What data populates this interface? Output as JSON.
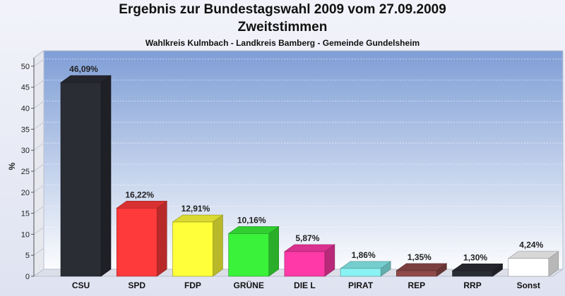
{
  "header": {
    "title": "Ergebnis zur Bundestagswahl 2009 vom 27.09.2009",
    "subtitle": "Zweitstimmen",
    "subtitle2": "Wahlkreis Kulmbach - Landkreis Bamberg - Gemeinde Gundelsheim"
  },
  "chart_data": {
    "type": "bar",
    "title": "Ergebnis zur Bundestagswahl 2009 vom 27.09.2009",
    "subtitle": "Zweitstimmen",
    "categories": [
      "CSU",
      "SPD",
      "FDP",
      "GRÜNE",
      "DIE L",
      "PIRAT",
      "REP",
      "RRP",
      "Sonst"
    ],
    "values": [
      46.09,
      16.22,
      12.91,
      10.16,
      5.87,
      1.86,
      1.35,
      1.3,
      4.24
    ],
    "labels": [
      "46,09%",
      "16,22%",
      "12,91%",
      "10,16%",
      "5,87%",
      "1,86%",
      "1,35%",
      "1,30%",
      "4,24%"
    ],
    "colors": [
      "#2b2d35",
      "#ff3a3a",
      "#ffff3a",
      "#3af23a",
      "#ff3aa8",
      "#8af2f2",
      "#8f4a4a",
      "#2b2d35",
      "#ffffff"
    ],
    "ylabel": "%",
    "xlabel": "",
    "ylim": [
      0,
      52
    ],
    "yticks": [
      0,
      5,
      10,
      15,
      20,
      25,
      30,
      35,
      40,
      45,
      50
    ],
    "grid": true
  }
}
